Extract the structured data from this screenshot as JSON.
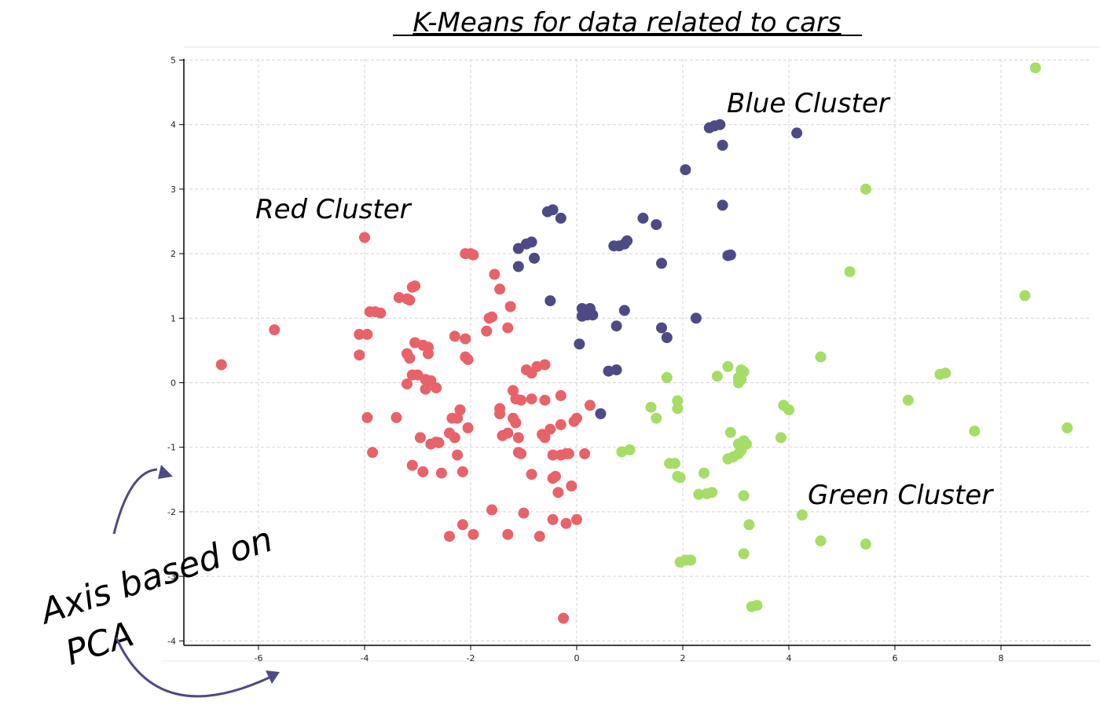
{
  "chart_data": {
    "type": "scatter",
    "title": "K-Means for data related to cars",
    "xlabel": "",
    "ylabel": "",
    "xlim": [
      -7.5,
      9.5
    ],
    "ylim": [
      -4,
      5
    ],
    "x_ticks": [
      -6,
      -4,
      -2,
      0,
      2,
      4,
      6,
      8
    ],
    "y_ticks": [
      -4,
      -3,
      -2,
      -1,
      0,
      1,
      2,
      3,
      4,
      5
    ],
    "grid": true,
    "legend": "none",
    "annotations": {
      "red": "Red Cluster",
      "blue": "Blue Cluster",
      "green": "Green Cluster",
      "axis_line1": "Axis based on",
      "axis_line2": "PCA"
    },
    "series": [
      {
        "color": "#e8626a",
        "points": [
          [
            -6.7,
            0.28
          ],
          [
            -5.7,
            0.82
          ],
          [
            -4.0,
            2.25
          ],
          [
            -4.1,
            0.75
          ],
          [
            -4.1,
            0.43
          ],
          [
            -3.95,
            0.75
          ],
          [
            -3.9,
            1.1
          ],
          [
            -3.8,
            1.1
          ],
          [
            -3.7,
            1.08
          ],
          [
            -3.95,
            -0.54
          ],
          [
            -3.85,
            -1.08
          ],
          [
            -3.4,
            -0.54
          ],
          [
            -3.35,
            1.32
          ],
          [
            -3.2,
            1.3
          ],
          [
            -3.15,
            1.28
          ],
          [
            -3.05,
            1.5
          ],
          [
            -3.1,
            1.48
          ],
          [
            -3.05,
            0.62
          ],
          [
            -3.2,
            0.45
          ],
          [
            -3.15,
            0.38
          ],
          [
            -3.1,
            0.12
          ],
          [
            -3.0,
            0.12
          ],
          [
            -3.2,
            -0.02
          ],
          [
            -2.9,
            0.58
          ],
          [
            -2.8,
            0.55
          ],
          [
            -2.8,
            0.45
          ],
          [
            -2.85,
            0.05
          ],
          [
            -2.75,
            0.03
          ],
          [
            -2.65,
            -0.08
          ],
          [
            -2.85,
            -0.1
          ],
          [
            -2.95,
            -0.85
          ],
          [
            -2.75,
            -0.95
          ],
          [
            -2.65,
            -0.92
          ],
          [
            -2.6,
            -0.93
          ],
          [
            -3.1,
            -1.28
          ],
          [
            -2.9,
            -1.38
          ],
          [
            -2.55,
            -1.4
          ],
          [
            -2.3,
            0.72
          ],
          [
            -2.1,
            0.68
          ],
          [
            -2.1,
            0.4
          ],
          [
            -2.05,
            0.36
          ],
          [
            -2.2,
            -0.42
          ],
          [
            -2.35,
            -0.55
          ],
          [
            -2.25,
            -0.55
          ],
          [
            -2.4,
            -0.78
          ],
          [
            -2.3,
            -0.85
          ],
          [
            -2.05,
            -0.7
          ],
          [
            -2.25,
            -1.12
          ],
          [
            -2.15,
            -1.38
          ],
          [
            -2.1,
            2.0
          ],
          [
            -2.0,
            2.0
          ],
          [
            -1.95,
            1.98
          ],
          [
            -1.65,
            1.0
          ],
          [
            -1.6,
            1.02
          ],
          [
            -1.7,
            0.8
          ],
          [
            -1.55,
            1.68
          ],
          [
            -1.45,
            1.45
          ],
          [
            -1.25,
            1.18
          ],
          [
            -1.3,
            0.85
          ],
          [
            -1.2,
            -0.12
          ],
          [
            -1.45,
            -0.4
          ],
          [
            -1.45,
            -0.48
          ],
          [
            -1.15,
            -0.25
          ],
          [
            -1.05,
            -0.27
          ],
          [
            -1.2,
            -0.55
          ],
          [
            -1.15,
            -0.62
          ],
          [
            -1.4,
            -0.82
          ],
          [
            -1.3,
            -0.78
          ],
          [
            -1.1,
            -0.85
          ],
          [
            -1.1,
            -1.08
          ],
          [
            -1.05,
            -1.1
          ],
          [
            -0.95,
            0.2
          ],
          [
            -0.85,
            0.15
          ],
          [
            -0.75,
            0.25
          ],
          [
            -0.6,
            0.28
          ],
          [
            -0.85,
            -0.25
          ],
          [
            -0.6,
            -0.27
          ],
          [
            -0.3,
            -0.2
          ],
          [
            -0.65,
            -0.8
          ],
          [
            -0.6,
            -0.85
          ],
          [
            -0.5,
            -0.72
          ],
          [
            -0.3,
            -0.65
          ],
          [
            -0.05,
            -0.6
          ],
          [
            0.0,
            -0.55
          ],
          [
            0.25,
            -0.35
          ],
          [
            -0.45,
            -1.12
          ],
          [
            -0.3,
            -1.12
          ],
          [
            -0.2,
            -1.1
          ],
          [
            -0.15,
            -1.1
          ],
          [
            0.15,
            -1.1
          ],
          [
            -0.85,
            -1.42
          ],
          [
            -0.4,
            -1.45
          ],
          [
            -0.45,
            -1.48
          ],
          [
            -0.35,
            -1.7
          ],
          [
            -0.1,
            -1.6
          ],
          [
            -1.6,
            -1.97
          ],
          [
            -1.0,
            -2.02
          ],
          [
            -0.45,
            -2.12
          ],
          [
            -0.2,
            -2.18
          ],
          [
            0.0,
            -2.12
          ],
          [
            -2.15,
            -2.2
          ],
          [
            -1.95,
            -2.35
          ],
          [
            -2.4,
            -2.38
          ],
          [
            -1.3,
            -2.35
          ],
          [
            -0.7,
            -2.38
          ],
          [
            -0.25,
            -3.65
          ]
        ]
      },
      {
        "color": "#4e4a85",
        "points": [
          [
            -0.55,
            2.65
          ],
          [
            -0.45,
            2.68
          ],
          [
            -0.3,
            2.55
          ],
          [
            -1.1,
            2.08
          ],
          [
            -0.95,
            2.15
          ],
          [
            -0.85,
            2.18
          ],
          [
            -0.8,
            1.93
          ],
          [
            -1.1,
            1.8
          ],
          [
            -0.5,
            1.27
          ],
          [
            0.1,
            1.15
          ],
          [
            0.25,
            1.15
          ],
          [
            0.1,
            1.03
          ],
          [
            0.2,
            1.05
          ],
          [
            0.3,
            1.05
          ],
          [
            0.9,
            1.12
          ],
          [
            0.75,
            0.88
          ],
          [
            0.05,
            0.6
          ],
          [
            0.6,
            0.18
          ],
          [
            0.75,
            0.2
          ],
          [
            0.45,
            -0.48
          ],
          [
            0.7,
            2.12
          ],
          [
            0.8,
            2.12
          ],
          [
            0.9,
            2.15
          ],
          [
            0.95,
            2.2
          ],
          [
            1.25,
            2.55
          ],
          [
            1.5,
            2.45
          ],
          [
            1.6,
            1.85
          ],
          [
            1.6,
            0.85
          ],
          [
            1.7,
            0.7
          ],
          [
            2.05,
            3.3
          ],
          [
            2.25,
            1.0
          ],
          [
            2.5,
            3.95
          ],
          [
            2.6,
            3.98
          ],
          [
            2.7,
            4.0
          ],
          [
            2.75,
            3.68
          ],
          [
            2.75,
            2.75
          ],
          [
            2.85,
            1.97
          ],
          [
            2.9,
            1.98
          ],
          [
            4.15,
            3.87
          ]
        ]
      },
      {
        "color": "#a6dd66",
        "points": [
          [
            8.65,
            4.88
          ],
          [
            5.45,
            3.0
          ],
          [
            5.15,
            1.72
          ],
          [
            8.45,
            1.35
          ],
          [
            4.6,
            0.4
          ],
          [
            6.25,
            -0.27
          ],
          [
            6.85,
            0.13
          ],
          [
            6.95,
            0.15
          ],
          [
            7.5,
            -0.75
          ],
          [
            9.25,
            -0.7
          ],
          [
            2.85,
            0.25
          ],
          [
            2.65,
            0.1
          ],
          [
            3.05,
            0.08
          ],
          [
            3.1,
            0.2
          ],
          [
            3.15,
            0.17
          ],
          [
            3.05,
            0.0
          ],
          [
            3.1,
            0.05
          ],
          [
            1.7,
            0.08
          ],
          [
            1.9,
            -0.28
          ],
          [
            1.9,
            -0.4
          ],
          [
            1.4,
            -0.38
          ],
          [
            1.5,
            -0.55
          ],
          [
            3.9,
            -0.35
          ],
          [
            4.0,
            -0.42
          ],
          [
            3.85,
            -0.85
          ],
          [
            2.9,
            -0.77
          ],
          [
            3.05,
            -0.95
          ],
          [
            3.15,
            -0.9
          ],
          [
            3.2,
            -0.95
          ],
          [
            3.1,
            -1.05
          ],
          [
            3.05,
            -1.1
          ],
          [
            2.95,
            -1.15
          ],
          [
            2.85,
            -1.18
          ],
          [
            0.85,
            -1.07
          ],
          [
            1.0,
            -1.04
          ],
          [
            1.75,
            -1.25
          ],
          [
            1.85,
            -1.25
          ],
          [
            1.9,
            -1.45
          ],
          [
            1.95,
            -1.47
          ],
          [
            2.4,
            -1.4
          ],
          [
            2.3,
            -1.73
          ],
          [
            2.45,
            -1.72
          ],
          [
            2.55,
            -1.7
          ],
          [
            3.15,
            -1.75
          ],
          [
            3.25,
            -2.2
          ],
          [
            4.25,
            -2.05
          ],
          [
            4.6,
            -2.45
          ],
          [
            5.45,
            -2.5
          ],
          [
            3.15,
            -2.65
          ],
          [
            1.95,
            -2.78
          ],
          [
            2.05,
            -2.75
          ],
          [
            2.15,
            -2.75
          ],
          [
            3.3,
            -3.47
          ],
          [
            3.4,
            -3.45
          ]
        ]
      }
    ]
  }
}
